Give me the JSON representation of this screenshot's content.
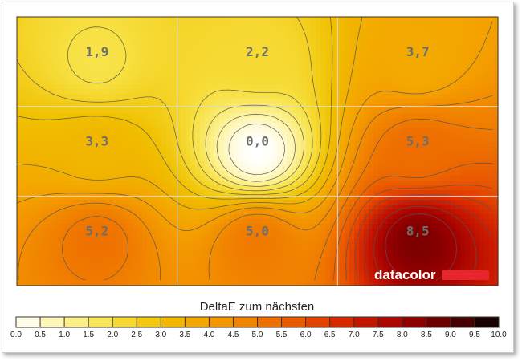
{
  "chart_data": {
    "type": "heatmap",
    "title": "DeltaE zum nächsten",
    "grid_rows": 3,
    "grid_cols": 3,
    "cells": [
      [
        {
          "value": 1.9,
          "label": "1,9"
        },
        {
          "value": 2.2,
          "label": "2,2"
        },
        {
          "value": 3.7,
          "label": "3,7"
        }
      ],
      [
        {
          "value": 3.3,
          "label": "3,3"
        },
        {
          "value": 0.0,
          "label": "0,0"
        },
        {
          "value": 5.3,
          "label": "5,3"
        }
      ],
      [
        {
          "value": 5.2,
          "label": "5,2"
        },
        {
          "value": 5.0,
          "label": "5,0"
        },
        {
          "value": 8.5,
          "label": "8,5"
        }
      ]
    ],
    "scale": {
      "min": 0,
      "max": 10,
      "step": 0.5,
      "tick_labels": [
        "0.0",
        "0.5",
        "1.0",
        "1.5",
        "2.0",
        "2.5",
        "3.0",
        "3.5",
        "4.0",
        "4.5",
        "5.0",
        "5.5",
        "6.0",
        "6.5",
        "7.0",
        "7.5",
        "8.0",
        "8.5",
        "9.0",
        "9.5",
        "10.0"
      ]
    },
    "colormap": [
      {
        "v": 0,
        "color": "#ffffff"
      },
      {
        "v": 1,
        "color": "#fdf3a0"
      },
      {
        "v": 2,
        "color": "#f7e040"
      },
      {
        "v": 3,
        "color": "#f0c000"
      },
      {
        "v": 4,
        "color": "#f4a000"
      },
      {
        "v": 5,
        "color": "#f07a00"
      },
      {
        "v": 6,
        "color": "#e85000"
      },
      {
        "v": 7,
        "color": "#d01c00"
      },
      {
        "v": 8,
        "color": "#a00000"
      },
      {
        "v": 9,
        "color": "#5a0000"
      },
      {
        "v": 10,
        "color": "#050000"
      }
    ],
    "contour_step": 0.5,
    "brand": "datacolor",
    "brand_color": "#e8242c",
    "grid_line_color": "#d8d8d8",
    "contour_color": "#555555"
  }
}
